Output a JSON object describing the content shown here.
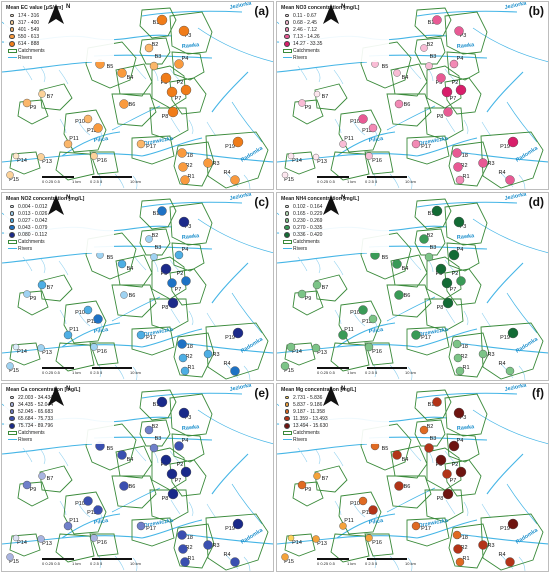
{
  "common": {
    "legend_catchments": "Catchments",
    "legend_rivers": "Rivers",
    "north": "N",
    "scale_left": "0 0.25 0.5",
    "scale_left_unit": "1 km",
    "scale_right": "0 2.5 5",
    "scale_right_unit": "10 km",
    "rivers": [
      {
        "name": "Jeziorka",
        "label": "Jeziorka"
      },
      {
        "name": "Rawka",
        "label": "Rawka"
      },
      {
        "name": "Pilica",
        "label": "Pilica"
      },
      {
        "name": "Drzewiczka",
        "label": "Drzewiczka"
      },
      {
        "name": "Radomka",
        "label": "Radomka"
      }
    ],
    "catchments": [
      "B1",
      "B2",
      "B3",
      "P3",
      "P4",
      "B5",
      "B4",
      "P5",
      "P2",
      "P7",
      "B6",
      "P8",
      "B7",
      "P9",
      "P10",
      "P12",
      "P11",
      "P13",
      "P14",
      "P15",
      "P16",
      "P17",
      "P18",
      "R2",
      "R1",
      "P19",
      "R3",
      "R4"
    ]
  },
  "panels": [
    {
      "letter": "(a)",
      "legend_title": "Mean EC value [μS/cm]",
      "classes": [
        {
          "label": "174 - 316",
          "color": "#fde8c8"
        },
        {
          "label": "317 - 400",
          "color": "#fcd29a"
        },
        {
          "label": "401 - 549",
          "color": "#fbb66a"
        },
        {
          "label": "550 - 613",
          "color": "#f99a3e"
        },
        {
          "label": "614 - 888",
          "color": "#f07c19"
        }
      ]
    },
    {
      "letter": "(b)",
      "legend_title": "Mean NO3 concentration [mg/L]",
      "classes": [
        {
          "label": "0.11 - 0.67",
          "color": "#fde6ef"
        },
        {
          "label": "0.68 - 2.45",
          "color": "#f9bcd5"
        },
        {
          "label": "2.46 - 7.12",
          "color": "#f28ab5"
        },
        {
          "label": "7.13 - 14.26",
          "color": "#e85a94"
        },
        {
          "label": "14.27 - 33.35",
          "color": "#d81e6a"
        }
      ]
    },
    {
      "letter": "(c)",
      "legend_title": "Mean NO2 concentration [mg/L]",
      "classes": [
        {
          "label": "0.004 - 0.012",
          "color": "#dbeefa"
        },
        {
          "label": "0.013 - 0.026",
          "color": "#9fd2f1"
        },
        {
          "label": "0.027 - 0.042",
          "color": "#4eaee4"
        },
        {
          "label": "0.043 - 0.079",
          "color": "#1e72c4"
        },
        {
          "label": "0.080 - 0.112",
          "color": "#1c2a8a"
        }
      ]
    },
    {
      "letter": "(d)",
      "legend_title": "Mean NH4 concentration [mg/L]",
      "classes": [
        {
          "label": "0.102 - 0.164",
          "color": "#e8f5e9"
        },
        {
          "label": "0.165 - 0.229",
          "color": "#b9e0bc"
        },
        {
          "label": "0.230 - 0.269",
          "color": "#7cc487"
        },
        {
          "label": "0.270 - 0.335",
          "color": "#3a9a57"
        },
        {
          "label": "0.336 - 0.420",
          "color": "#136b35"
        }
      ]
    },
    {
      "letter": "(e)",
      "legend_title": "Mean Ca concentration [mg/L]",
      "classes": [
        {
          "label": "22.003 - 34.434",
          "color": "#dde2f3"
        },
        {
          "label": "34.435 - 52.044",
          "color": "#a9b4e0"
        },
        {
          "label": "52.045 - 65.683",
          "color": "#6f7fc9"
        },
        {
          "label": "65.684 - 75.733",
          "color": "#3a4fb0"
        },
        {
          "label": "75.734 - 89.796",
          "color": "#1a2a8a"
        }
      ]
    },
    {
      "letter": "(f)",
      "legend_title": "Mean Mg concentration [mg/L]",
      "classes": [
        {
          "label": "2.731 - 5.836",
          "color": "#fcd55a"
        },
        {
          "label": "5.837 - 9.186",
          "color": "#f4a23a"
        },
        {
          "label": "9.187 - 11.358",
          "color": "#e06a22"
        },
        {
          "label": "11.359 - 13.493",
          "color": "#b23418"
        },
        {
          "label": "13.494 - 15.630",
          "color": "#6e1410"
        }
      ]
    }
  ]
}
